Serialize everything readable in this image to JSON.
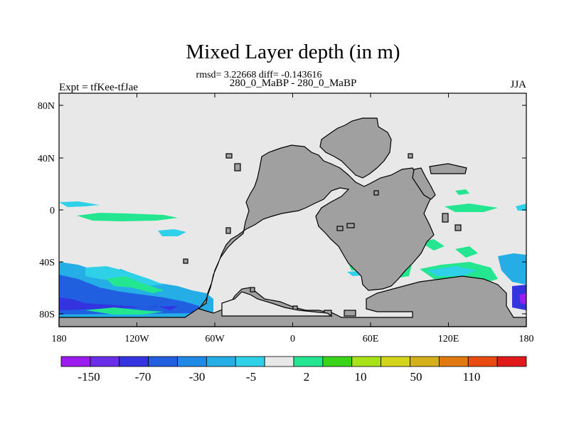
{
  "chart_data": {
    "type": "heatmap",
    "title": "Mixed Layer depth (in m)",
    "stats_line": "rmsd= 3.22668 diff= -0.143616",
    "subtitle": "280_0_MaBP - 280_0_MaBP",
    "left_label": "Expt = tfKee-tfJae",
    "right_label": "JJA",
    "x_ticks": [
      "180",
      "120W",
      "60W",
      "0",
      "60E",
      "120E",
      "180"
    ],
    "y_ticks": [
      "80N",
      "40N",
      "0",
      "40S",
      "80S"
    ],
    "xlim": [
      -180,
      180
    ],
    "ylim": [
      -90,
      90
    ],
    "colorbar": {
      "labels": [
        "-150",
        "-70",
        "-30",
        "-5",
        "2",
        "10",
        "50",
        "110"
      ],
      "colors": [
        "#9c1cf0",
        "#6a2ee8",
        "#3333e0",
        "#1f5fe0",
        "#1f8ae6",
        "#25aee6",
        "#2ed1e8",
        "#e8e8e8",
        "#25e690",
        "#3ad41a",
        "#a8e31a",
        "#d4d41a",
        "#d4b01a",
        "#e07a10",
        "#e84a10",
        "#e01a1a"
      ]
    },
    "colors": {
      "ocean": "#e8e8e8",
      "land": "#a0a0a0"
    }
  }
}
